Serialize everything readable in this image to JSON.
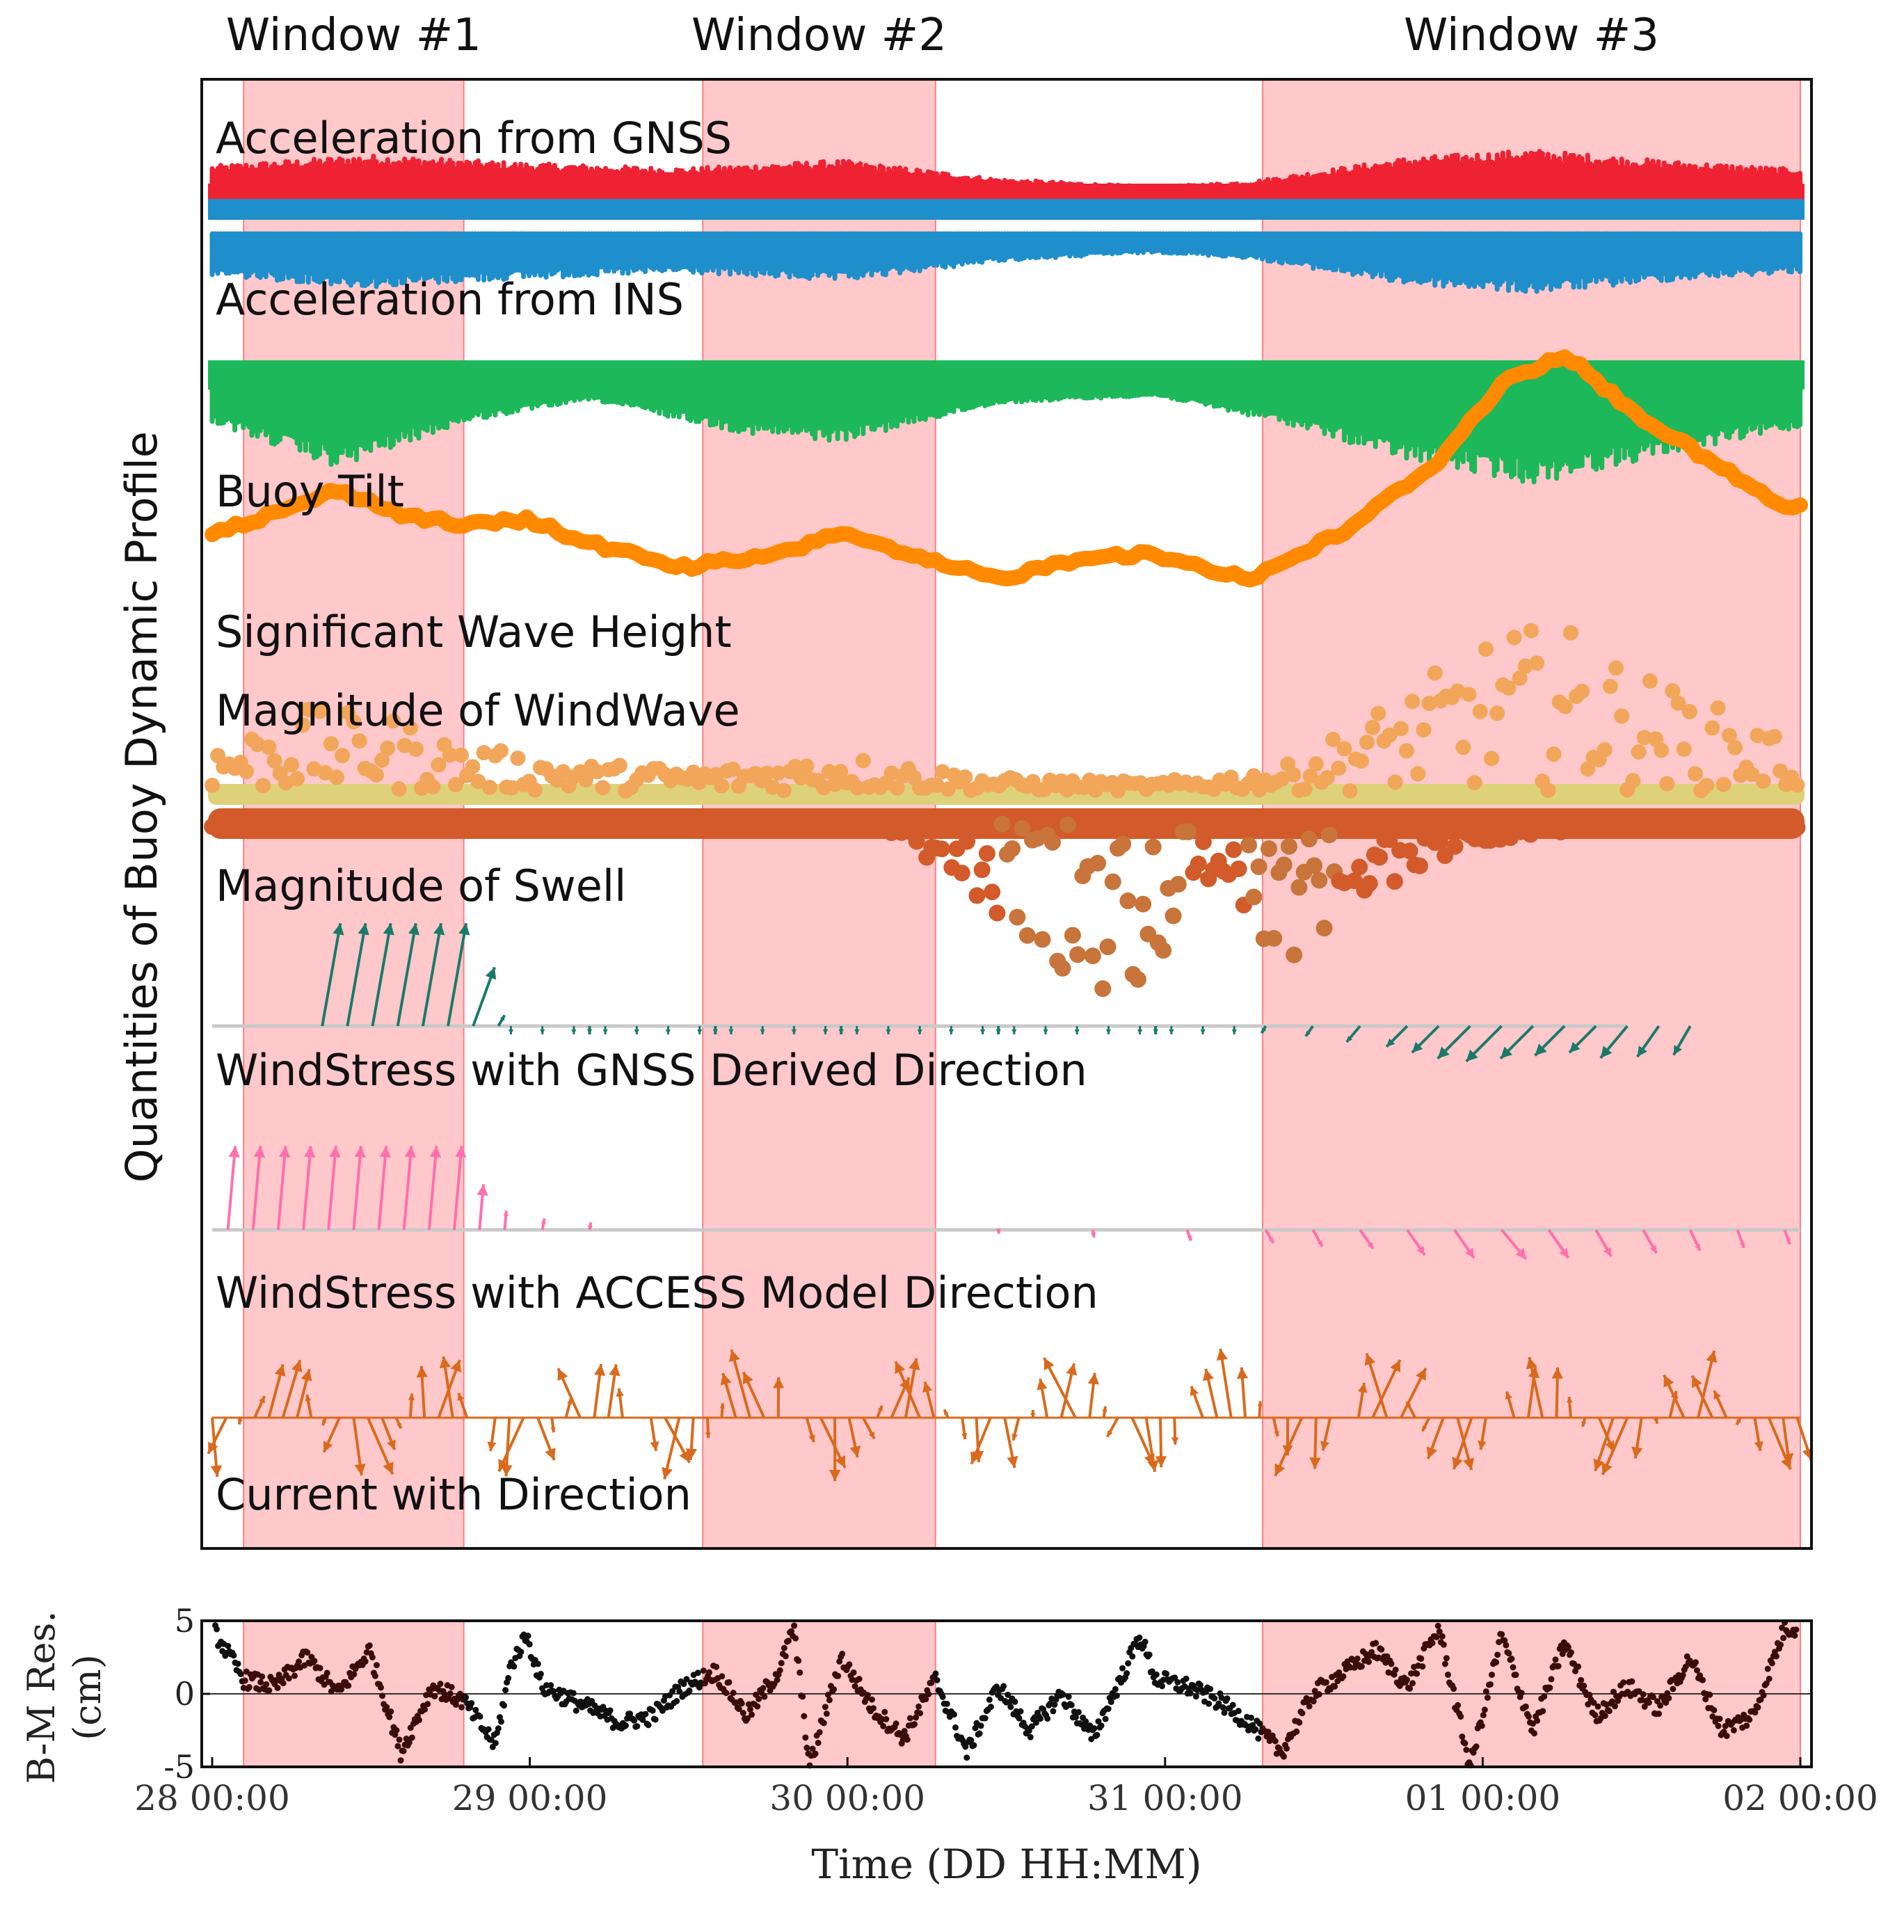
{
  "chart_data": [
    {
      "type": "scatter",
      "panel": "top",
      "ylabel": "Quantities of Buoy Dynamic Profile",
      "windows": [
        {
          "label": "Window #1",
          "start": 1.0,
          "end": 8.0
        },
        {
          "label": "Window #2",
          "start": 15.6,
          "end": 23.0
        },
        {
          "label": "Window #3",
          "start": 33.4,
          "end": 50.5
        }
      ],
      "x_range_hours": [
        0,
        50.5
      ],
      "series": [
        {
          "name": "Acceleration from GNSS",
          "kind": "band",
          "color": "#ee2233",
          "x": [
            0,
            5,
            10,
            15,
            20,
            25,
            30,
            33,
            38,
            42,
            46,
            50
          ],
          "half_width": [
            1.2,
            1.6,
            1.3,
            1.1,
            1.4,
            0.7,
            0.4,
            0.6,
            1.5,
            1.8,
            1.4,
            1.1
          ]
        },
        {
          "name": "Acceleration from INS",
          "kind": "band",
          "color": "#1f8fcc",
          "x": [
            0,
            5,
            10,
            15,
            20,
            25,
            30,
            33,
            38,
            42,
            46,
            50
          ],
          "half_width": [
            1.2,
            1.6,
            1.3,
            1.1,
            1.4,
            0.7,
            0.4,
            0.6,
            1.5,
            1.8,
            1.4,
            1.1
          ]
        },
        {
          "name": "Buoy Tilt",
          "kind": "band",
          "color": "#1db85a",
          "x": [
            0,
            4,
            8,
            12,
            17,
            20,
            25,
            30,
            34,
            38,
            42,
            46,
            50
          ],
          "half_width": [
            1.0,
            2.2,
            1.0,
            0.4,
            1.3,
            1.5,
            0.5,
            0.3,
            1.0,
            2.0,
            2.6,
            1.9,
            1.2
          ]
        },
        {
          "name": "Significant Wave Height",
          "kind": "line",
          "color": "#ff8a00",
          "x": [
            0,
            2,
            4,
            6,
            8,
            10,
            12,
            15,
            18,
            20,
            22,
            25,
            28,
            30,
            33,
            36,
            39,
            41,
            43,
            45,
            47,
            50
          ],
          "y": [
            1.6,
            1.9,
            2.3,
            1.9,
            1.7,
            1.8,
            1.4,
            1.0,
            1.2,
            1.6,
            1.2,
            0.8,
            1.2,
            1.2,
            0.8,
            1.6,
            2.8,
            4.1,
            4.6,
            3.7,
            3.0,
            2.0
          ]
        },
        {
          "name": "Magnitude of WindWave",
          "kind": "points",
          "color": "#f2a65a",
          "x": [
            0,
            3,
            6,
            8,
            12,
            16,
            20,
            25,
            30,
            34,
            38,
            41,
            43,
            46,
            50
          ],
          "y": [
            1.0,
            1.8,
            1.6,
            1.0,
            0.6,
            0.5,
            0.8,
            0.3,
            0.2,
            0.5,
            2.2,
            3.5,
            3.6,
            2.4,
            1.2
          ]
        },
        {
          "name": "Magnitude of Swell",
          "kind": "points",
          "color": "#d35a2a",
          "x": [
            0,
            5,
            10,
            15,
            20,
            24,
            27,
            29,
            32,
            34,
            36,
            40,
            45,
            50
          ],
          "y": [
            0,
            0.3,
            0.2,
            0.3,
            0.4,
            -1.0,
            -2.2,
            -2.8,
            -0.8,
            -2.2,
            -1.3,
            -0.3,
            0,
            0
          ]
        },
        {
          "name": "WindStress with GNSS Derived Direction",
          "kind": "arrows",
          "color": "#1a7a6a",
          "x": [
            3.5,
            4.3,
            5.1,
            5.9,
            6.7,
            7.5,
            8.3,
            9.1,
            12,
            16,
            20,
            25,
            30,
            33.5,
            35,
            36.5,
            38,
            39,
            40,
            41,
            42,
            43,
            44,
            45,
            46,
            47
          ],
          "mag": [
            2.5,
            2.5,
            2.5,
            2.5,
            2.5,
            2.5,
            1.5,
            0.3,
            0.2,
            0.2,
            0.2,
            0.2,
            0.2,
            0.2,
            0.3,
            0.5,
            0.7,
            0.9,
            1.1,
            1.2,
            1.1,
            1.0,
            0.9,
            1.0,
            0.9,
            0.8
          ],
          "angle_deg": [
            80,
            80,
            80,
            80,
            80,
            80,
            70,
            60,
            270,
            270,
            270,
            270,
            270,
            240,
            235,
            230,
            225,
            225,
            225,
            225,
            225,
            225,
            225,
            230,
            235,
            240
          ]
        },
        {
          "name": "WindStress with ACCESS Model Direction",
          "kind": "arrows",
          "color": "#ff6fae",
          "x": [
            0.5,
            1.3,
            2.1,
            2.9,
            3.7,
            4.5,
            5.3,
            6.1,
            6.9,
            7.7,
            8.5,
            9.3,
            10.5,
            12,
            25,
            28,
            31,
            33.5,
            35,
            36.5,
            38,
            39.5,
            41,
            42.5,
            44,
            45.5,
            47,
            48.5,
            50
          ],
          "mag": [
            2.2,
            2.2,
            2.2,
            2.2,
            2.2,
            2.2,
            2.2,
            2.2,
            2.2,
            2.2,
            1.2,
            0.5,
            0.3,
            0.2,
            0.1,
            0.2,
            0.3,
            0.4,
            0.5,
            0.6,
            0.8,
            0.9,
            1.0,
            0.9,
            0.8,
            0.7,
            0.6,
            0.5,
            0.4
          ],
          "angle_deg": [
            85,
            85,
            85,
            85,
            85,
            85,
            85,
            85,
            85,
            85,
            85,
            85,
            80,
            80,
            280,
            280,
            290,
            300,
            300,
            305,
            305,
            305,
            310,
            305,
            300,
            300,
            295,
            290,
            290
          ]
        },
        {
          "name": "Current with Direction",
          "kind": "tidal_arrows",
          "color": "#d96a1c",
          "period_hours": 5.0,
          "phase_hours": 1.0,
          "mag_up": 1.2,
          "mag_down": 1.1
        }
      ],
      "bottom_axis_hidden": true
    },
    {
      "type": "scatter",
      "panel": "bottom",
      "ylabel": "B-M Res.\n(cm)",
      "xlabel": "Time (DD HH:MM)",
      "ylim": [
        -5,
        5
      ],
      "yticks": [
        "5",
        "0",
        "-5"
      ],
      "xticks": [
        "28 00:00",
        "29 00:00",
        "30 00:00",
        "31 00:00",
        "01 00:00",
        "02 00:00"
      ],
      "x_range_hours": [
        0,
        50.5
      ],
      "color": "#111111",
      "x": [
        0,
        1,
        2,
        3,
        4,
        5,
        6,
        7,
        8,
        9,
        9.5,
        10,
        10.5,
        11,
        12,
        13,
        14,
        15,
        16,
        17,
        18,
        18.5,
        19,
        20,
        21,
        22,
        23,
        24,
        25,
        26,
        27,
        28,
        29,
        29.5,
        30,
        31,
        32,
        33,
        34,
        35,
        36,
        37,
        38,
        39,
        40,
        41,
        42,
        43,
        44,
        45,
        46,
        47,
        48,
        49,
        50
      ],
      "y": [
        4.5,
        1.0,
        0.5,
        2.5,
        0.0,
        3.0,
        -4.0,
        0.5,
        -0.5,
        -3.5,
        2.0,
        4.0,
        0.5,
        0.0,
        -1.0,
        -2.0,
        -1.5,
        0.5,
        1.5,
        -1.5,
        1.5,
        4.5,
        -5.0,
        2.5,
        -1.0,
        -3.0,
        1.0,
        -4.0,
        0.5,
        -2.5,
        0.0,
        -3.0,
        1.5,
        4.0,
        1.0,
        0.5,
        -0.5,
        -2.0,
        -4.0,
        0.0,
        1.5,
        3.0,
        0.5,
        4.5,
        -5.0,
        4.0,
        -2.5,
        3.5,
        -1.5,
        0.5,
        -1.0,
        2.5,
        -2.5,
        -1.5,
        4.5
      ]
    }
  ]
}
